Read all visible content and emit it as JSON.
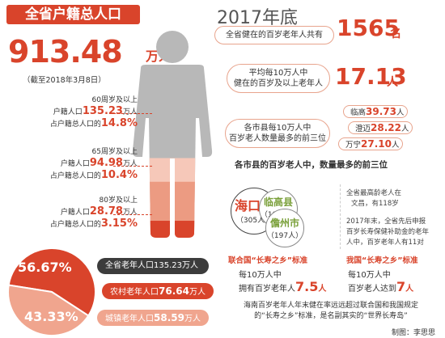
{
  "left": {
    "title": "全省户籍总人口",
    "total_number": "913.48",
    "total_unit": "万人",
    "as_of": "（截至2018年3月8日）",
    "groups": [
      {
        "line1": "60周岁及以上",
        "line2_prefix": "户籍人口",
        "line2_value": "135.23",
        "line2_suffix": "万人",
        "line3_prefix": "占户籍总人口的",
        "line3_value": "14.8%",
        "share": 14.8
      },
      {
        "line1": "65周岁及以上",
        "line2_prefix": "户籍人口",
        "line2_value": "94.98",
        "line2_suffix": "万人",
        "line3_prefix": "占户籍总人口的",
        "line3_value": "10.4%",
        "share": 10.4
      },
      {
        "line1": "80岁及以上",
        "line2_prefix": "户籍人口",
        "line2_value": "28.78",
        "line2_suffix": "万人",
        "line3_prefix": "占户籍总人口的",
        "line3_value": "3.15%",
        "share": 3.15
      }
    ]
  },
  "pie": {
    "center_label": "全省老年人口135.23万人",
    "rural_pct": "56.67%",
    "urban_pct": "43.33%",
    "rural_label_prefix": "农村老年人口",
    "rural_value": "76.64",
    "rural_unit": "万人",
    "urban_label_prefix": "城镇老年人口",
    "urban_value": "58.59",
    "urban_unit": "万人",
    "colors": {
      "rural": "#d9442b",
      "urban": "#f0a58e"
    }
  },
  "right": {
    "year": "2017年底",
    "centenarians_label": "全省健在的百岁老年人共有",
    "centenarians_value": "1565",
    "centenarians_unit": "名",
    "avg_label_1": "平均每10万人中",
    "avg_label_2": "健在的百岁及以上老年人",
    "avg_value": "17.13",
    "avg_unit": "人",
    "top3_label_1": "各市县每10万人中",
    "top3_label_2": "百岁老人数量最多的前三位",
    "top3_ratio": [
      {
        "name": "临高",
        "value": "39.73",
        "unit": "人"
      },
      {
        "name": "澄迈",
        "value": "28.22",
        "unit": "人"
      },
      {
        "name": "万宁",
        "value": "27.10",
        "unit": "人"
      }
    ],
    "top3_count_title": "各市县的百岁老人中，数量最多的前三位",
    "top3_count": [
      {
        "name": "海口市",
        "count": "（305人）"
      },
      {
        "name": "临高县",
        "count": "（199人）"
      },
      {
        "name": "儋州市",
        "count": "（197人）"
      }
    ],
    "oldest_1": "全省最高龄老人在",
    "oldest_2": "文昌，有118岁",
    "awarded_1": "2017年末，全省先后申报",
    "awarded_2": "百岁长寿保健补助金的老年",
    "awarded_3": "人中，百岁老年人有11对",
    "un_title": "联合国“长寿之乡”标准",
    "un_line1": "每10万人中",
    "un_line2_prefix": "拥有百岁老年人",
    "un_value": "7.5",
    "un_unit": "人",
    "cn_title": "我国“长寿之乡”标准",
    "cn_line1": "每10万人中",
    "cn_line2_prefix": "百岁老人达到",
    "cn_value": "7",
    "cn_unit": "人",
    "note_1": "海南百岁老年人年末健在率远远超过联合国和我国规定",
    "note_2": "的“长寿之乡”标准，是名副其实的“世界长寿岛”",
    "credit": "制图：李思思"
  }
}
